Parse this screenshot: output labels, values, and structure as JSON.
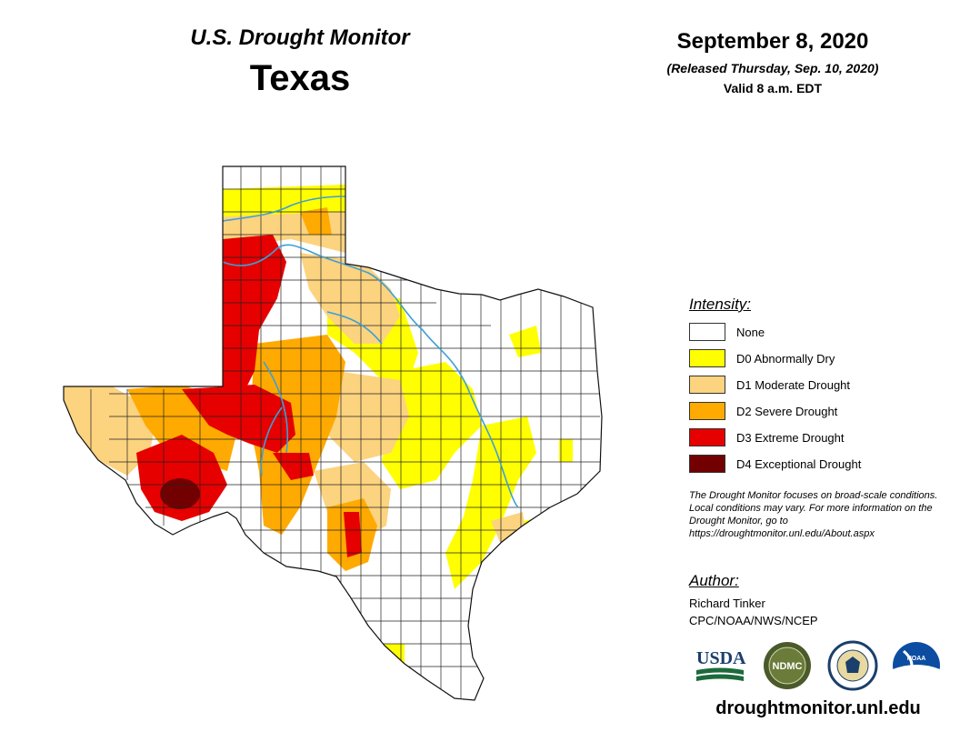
{
  "header": {
    "line1": "U.S. Drought Monitor",
    "state": "Texas"
  },
  "date": {
    "main": "September 8, 2020",
    "released": "(Released Thursday, Sep. 10, 2020)",
    "valid": "Valid 8 a.m. EDT"
  },
  "legend": {
    "title": "Intensity:",
    "items": [
      {
        "label": "None",
        "color": "#ffffff"
      },
      {
        "label": "D0 Abnormally Dry",
        "color": "#ffff00"
      },
      {
        "label": "D1 Moderate Drought",
        "color": "#fcd37f"
      },
      {
        "label": "D2 Severe Drought",
        "color": "#ffaa00"
      },
      {
        "label": "D3 Extreme Drought",
        "color": "#e60000"
      },
      {
        "label": "D4 Exceptional Drought",
        "color": "#730000"
      }
    ]
  },
  "note": "The Drought Monitor focuses on broad-scale conditions. Local conditions may vary. For more information on the Drought Monitor, go to https://droughtmonitor.unl.edu/About.aspx",
  "author": {
    "title": "Author:",
    "name": "Richard Tinker",
    "org": "CPC/NOAA/NWS/NCEP"
  },
  "logos": {
    "usda": "USDA",
    "ndmc": "NDMC",
    "noaa": "NOAA"
  },
  "site": "droughtmonitor.unl.edu",
  "colors": {
    "river": "#3d9fd6",
    "county_lines": "#222222"
  }
}
